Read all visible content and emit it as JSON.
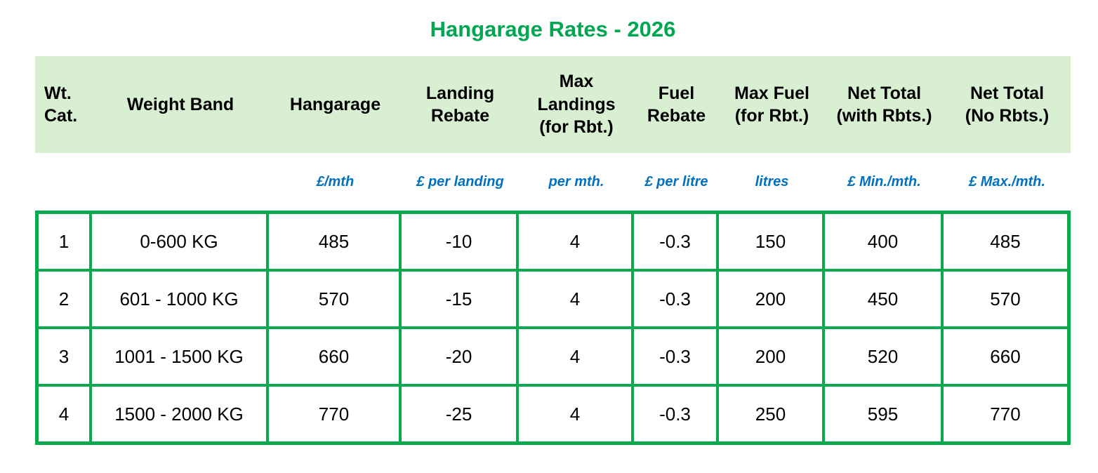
{
  "title": "Hangarage Rates - 2026",
  "colors": {
    "title_green": "#00a651",
    "table_border_green": "#0aa84f",
    "header_background": "#d9efd2",
    "units_blue": "#0070c0"
  },
  "table": {
    "columns": [
      {
        "label": "Wt.\nCat.",
        "unit": ""
      },
      {
        "label": "Weight Band",
        "unit": ""
      },
      {
        "label": "Hangarage",
        "unit": "£/mth"
      },
      {
        "label": "Landing\nRebate",
        "unit": "£ per landing"
      },
      {
        "label": "Max\nLandings\n(for Rbt.)",
        "unit": "per mth."
      },
      {
        "label": "Fuel\nRebate",
        "unit": "£ per litre"
      },
      {
        "label": "Max Fuel\n(for Rbt.)",
        "unit": "litres"
      },
      {
        "label": "Net Total\n(with Rbts.)",
        "unit": "£ Min./mth."
      },
      {
        "label": "Net Total\n(No Rbts.)",
        "unit": "£ Max./mth."
      }
    ],
    "rows": [
      [
        "1",
        "0-600 KG",
        "485",
        "-10",
        "4",
        "-0.3",
        "150",
        "400",
        "485"
      ],
      [
        "2",
        "601 - 1000 KG",
        "570",
        "-15",
        "4",
        "-0.3",
        "200",
        "450",
        "570"
      ],
      [
        "3",
        "1001 - 1500 KG",
        "660",
        "-20",
        "4",
        "-0.3",
        "200",
        "520",
        "660"
      ],
      [
        "4",
        "1500 - 2000 KG",
        "770",
        "-25",
        "4",
        "-0.3",
        "250",
        "595",
        "770"
      ]
    ]
  }
}
